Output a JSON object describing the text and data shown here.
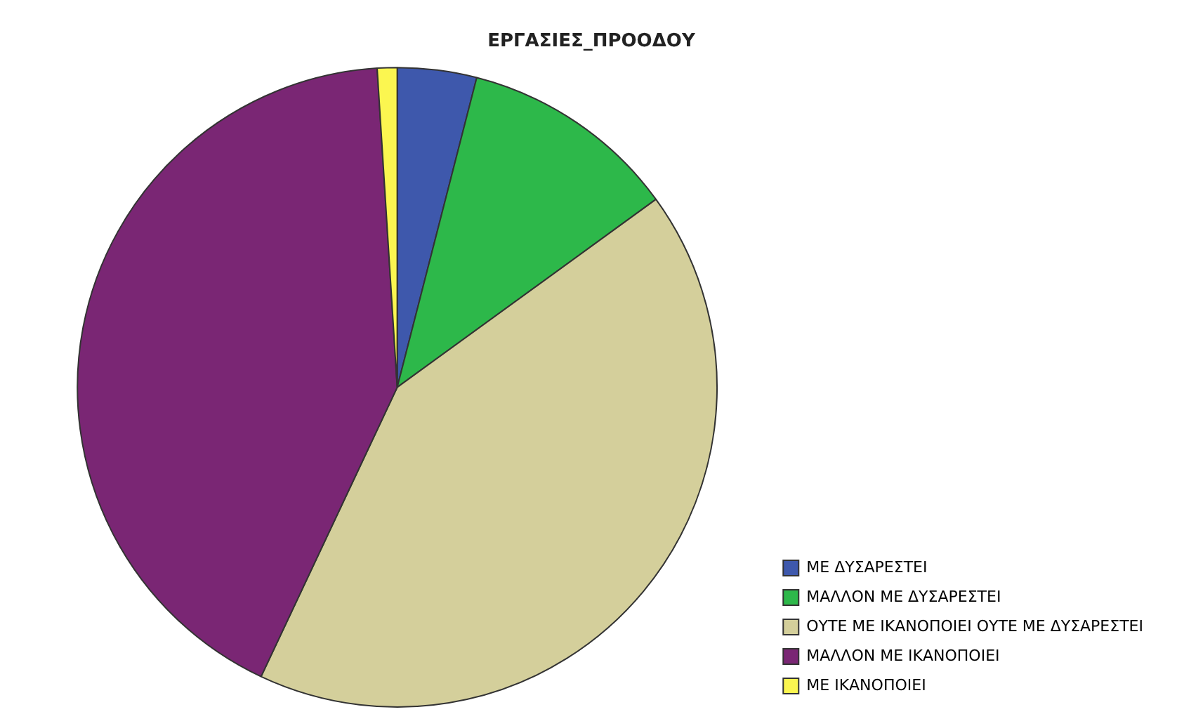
{
  "chart_data": {
    "type": "pie",
    "title": "ΕΡΓΑΣΙΕΣ_ΠΡΟΟΔΟΥ",
    "categories": [
      "ΜΕ ΔΥΣΑΡΕΣΤΕΙ",
      "ΜΑΛΛΟΝ ΜΕ ΔΥΣΑΡΕΣΤΕΙ",
      "ΟΥΤΕ ΜΕ ΙΚΑΝΟΠΟΙΕΙ ΟΥΤΕ ΜΕ ΔΥΣΑΡΕΣΤΕΙ",
      "ΜΑΛΛΟΝ ΜΕ ΙΚΑΝΟΠΟΙΕΙ",
      "ΜΕ ΙΚΑΝΟΠΟΙΕΙ"
    ],
    "values": [
      4,
      11,
      42,
      42,
      1
    ],
    "colors": [
      "#3e58ac",
      "#2db84a",
      "#d4cf9b",
      "#7a2674",
      "#fbf650"
    ],
    "legend": "bottom right"
  }
}
